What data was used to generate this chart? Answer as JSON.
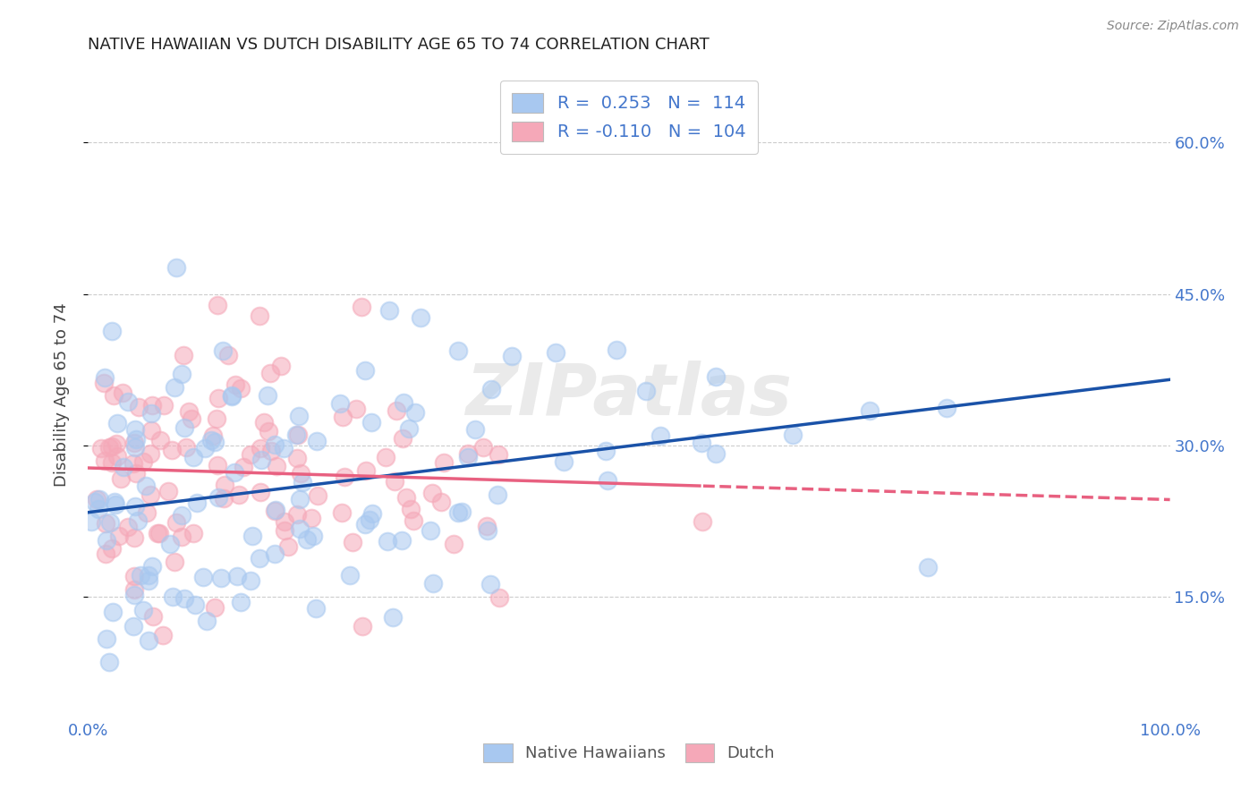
{
  "title": "NATIVE HAWAIIAN VS DUTCH DISABILITY AGE 65 TO 74 CORRELATION CHART",
  "source": "Source: ZipAtlas.com",
  "ylabel": "Disability Age 65 to 74",
  "yticks": [
    "15.0%",
    "30.0%",
    "45.0%",
    "60.0%"
  ],
  "ytick_vals": [
    0.15,
    0.3,
    0.45,
    0.6
  ],
  "xlim": [
    0.0,
    1.0
  ],
  "ylim": [
    0.03,
    0.67
  ],
  "color_blue": "#A8C8F0",
  "color_pink": "#F5A8B8",
  "trendline_blue": "#1A52A8",
  "trendline_pink": "#E86080",
  "background_color": "#FFFFFF",
  "grid_color": "#CCCCCC",
  "title_color": "#222222",
  "axis_label_color": "#4477CC",
  "watermark": "ZIPatlas",
  "R1": 0.253,
  "N1": 114,
  "R2": -0.11,
  "N2": 104,
  "seed": 99
}
